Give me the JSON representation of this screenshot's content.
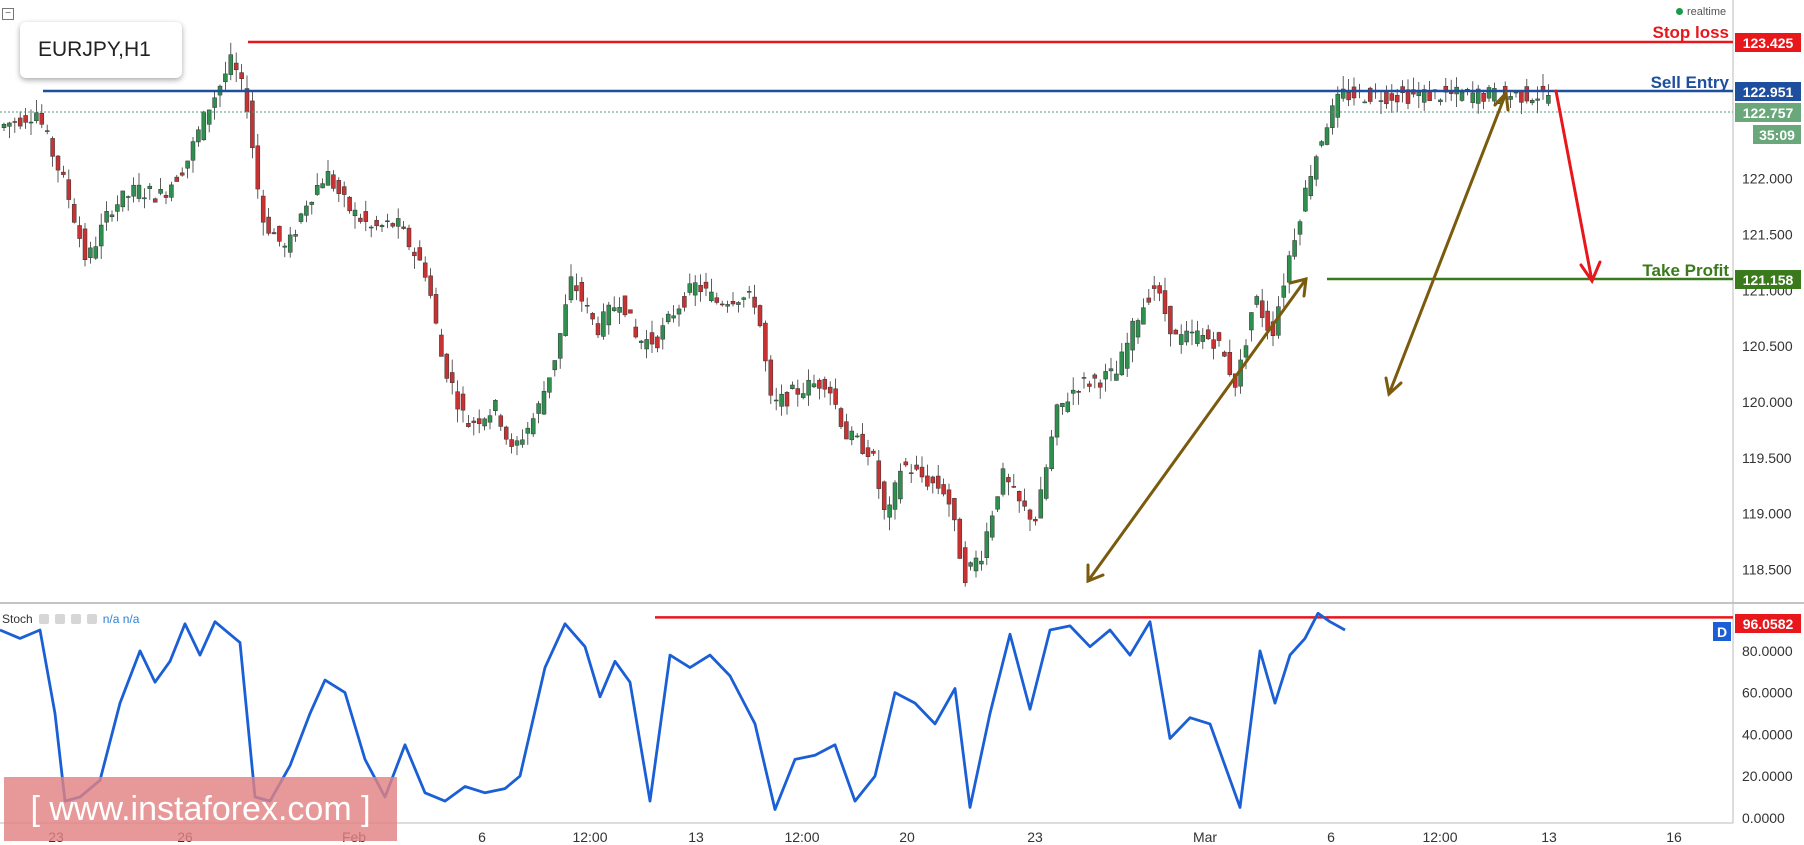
{
  "symbol": "EURJPY,H1",
  "status": "realtime",
  "watermark": "[ www.instaforex.com ]",
  "indicator": {
    "name": "Stoch",
    "values": "n/a n/a",
    "badge": "D"
  },
  "price_tags": {
    "stop_loss": "123.425",
    "sell_entry": "122.951",
    "current": "122.757",
    "countdown": "35:09",
    "take_profit": "121.158",
    "stoch_level": "96.0582"
  },
  "line_labels": {
    "stop_loss": "Stop loss",
    "sell_entry": "Sell Entry",
    "take_profit": "Take Profit"
  },
  "colors": {
    "stop_loss": "#e8171b",
    "sell_entry": "#1e4e9e",
    "take_profit": "#3a7a1d",
    "up_candle": "#2f8f4f",
    "down_candle": "#c83232",
    "stoch_line": "#1a5fd6",
    "arrow_brown": "#7a5a0c",
    "arrow_red": "#e8171b",
    "current_tag": "#6aa77b",
    "axis_text": "#333333"
  },
  "chart_data": [
    {
      "type": "candlestick",
      "title": "EURJPY,H1",
      "x_tick_labels": [
        "23",
        "26",
        "Feb",
        "6",
        "12:00",
        "13",
        "12:00",
        "20",
        "23",
        "Mar",
        "6",
        "12:00",
        "13",
        "16"
      ],
      "y_tick_labels": [
        "118.500",
        "119.000",
        "119.500",
        "120.000",
        "120.500",
        "121.000",
        "121.500",
        "122.000"
      ],
      "ylim": [
        118.2,
        123.6
      ],
      "price_path": [
        [
          0,
          122.45
        ],
        [
          40,
          122.6
        ],
        [
          70,
          121.9
        ],
        [
          90,
          121.25
        ],
        [
          115,
          121.75
        ],
        [
          140,
          121.9
        ],
        [
          165,
          121.85
        ],
        [
          190,
          122.15
        ],
        [
          210,
          122.6
        ],
        [
          235,
          123.05
        ],
        [
          250,
          122.7
        ],
        [
          265,
          121.65
        ],
        [
          290,
          121.35
        ],
        [
          310,
          121.8
        ],
        [
          330,
          122.05
        ],
        [
          350,
          121.75
        ],
        [
          375,
          121.55
        ],
        [
          400,
          121.6
        ],
        [
          430,
          121.15
        ],
        [
          445,
          120.4
        ],
        [
          470,
          119.8
        ],
        [
          500,
          119.95
        ],
        [
          515,
          119.55
        ],
        [
          540,
          119.9
        ],
        [
          560,
          120.45
        ],
        [
          575,
          121.1
        ],
        [
          600,
          120.65
        ],
        [
          625,
          120.95
        ],
        [
          640,
          120.55
        ],
        [
          660,
          120.55
        ],
        [
          680,
          120.85
        ],
        [
          700,
          121.05
        ],
        [
          720,
          120.9
        ],
        [
          740,
          120.95
        ],
        [
          760,
          120.9
        ],
        [
          775,
          119.95
        ],
        [
          800,
          120.1
        ],
        [
          830,
          120.2
        ],
        [
          850,
          119.7
        ],
        [
          875,
          119.55
        ],
        [
          890,
          118.9
        ],
        [
          905,
          119.45
        ],
        [
          930,
          119.3
        ],
        [
          950,
          119.2
        ],
        [
          968,
          118.45
        ],
        [
          985,
          118.65
        ],
        [
          1005,
          119.35
        ],
        [
          1025,
          119.05
        ],
        [
          1040,
          118.95
        ],
        [
          1060,
          119.9
        ],
        [
          1080,
          120.15
        ],
        [
          1100,
          120.2
        ],
        [
          1120,
          120.25
        ],
        [
          1140,
          120.75
        ],
        [
          1157,
          121.05
        ],
        [
          1180,
          120.55
        ],
        [
          1200,
          120.6
        ],
        [
          1220,
          120.55
        ],
        [
          1240,
          120.15
        ],
        [
          1258,
          120.95
        ],
        [
          1275,
          120.6
        ],
        [
          1295,
          121.4
        ],
        [
          1315,
          122.1
        ],
        [
          1330,
          122.5
        ],
        [
          1345,
          122.75
        ]
      ]
    },
    {
      "type": "line",
      "title": "Stoch",
      "y_tick_labels": [
        "0.0000",
        "20.0000",
        "40.0000",
        "60.0000",
        "80.0000"
      ],
      "ylim": [
        -2,
        102
      ],
      "level": 96.0582,
      "series": [
        {
          "values": [
            [
              0,
              90
            ],
            [
              20,
              86
            ],
            [
              40,
              90
            ],
            [
              55,
              50
            ],
            [
              65,
              8
            ],
            [
              80,
              10
            ],
            [
              100,
              18
            ],
            [
              120,
              55
            ],
            [
              140,
              80
            ],
            [
              155,
              65
            ],
            [
              170,
              75
            ],
            [
              185,
              93
            ],
            [
              200,
              78
            ],
            [
              215,
              94
            ],
            [
              240,
              84
            ],
            [
              255,
              10
            ],
            [
              270,
              8
            ],
            [
              290,
              25
            ],
            [
              310,
              50
            ],
            [
              325,
              66
            ],
            [
              345,
              60
            ],
            [
              365,
              28
            ],
            [
              385,
              10
            ],
            [
              405,
              35
            ],
            [
              425,
              12
            ],
            [
              445,
              8
            ],
            [
              465,
              15
            ],
            [
              485,
              12
            ],
            [
              505,
              14
            ],
            [
              520,
              20
            ],
            [
              545,
              72
            ],
            [
              565,
              93
            ],
            [
              585,
              82
            ],
            [
              600,
              58
            ],
            [
              615,
              75
            ],
            [
              630,
              65
            ],
            [
              650,
              8
            ],
            [
              670,
              78
            ],
            [
              690,
              72
            ],
            [
              710,
              78
            ],
            [
              730,
              68
            ],
            [
              755,
              45
            ],
            [
              775,
              4
            ],
            [
              795,
              28
            ],
            [
              815,
              30
            ],
            [
              835,
              35
            ],
            [
              855,
              8
            ],
            [
              875,
              20
            ],
            [
              895,
              60
            ],
            [
              915,
              55
            ],
            [
              935,
              45
            ],
            [
              955,
              62
            ],
            [
              970,
              5
            ],
            [
              990,
              50
            ],
            [
              1010,
              88
            ],
            [
              1030,
              52
            ],
            [
              1050,
              90
            ],
            [
              1070,
              92
            ],
            [
              1090,
              82
            ],
            [
              1110,
              90
            ],
            [
              1130,
              78
            ],
            [
              1150,
              94
            ],
            [
              1170,
              38
            ],
            [
              1190,
              48
            ],
            [
              1210,
              45
            ],
            [
              1240,
              5
            ],
            [
              1260,
              80
            ],
            [
              1275,
              55
            ],
            [
              1290,
              78
            ],
            [
              1305,
              86
            ],
            [
              1318,
              98
            ],
            [
              1330,
              94
            ],
            [
              1345,
              90
            ]
          ]
        }
      ]
    }
  ]
}
